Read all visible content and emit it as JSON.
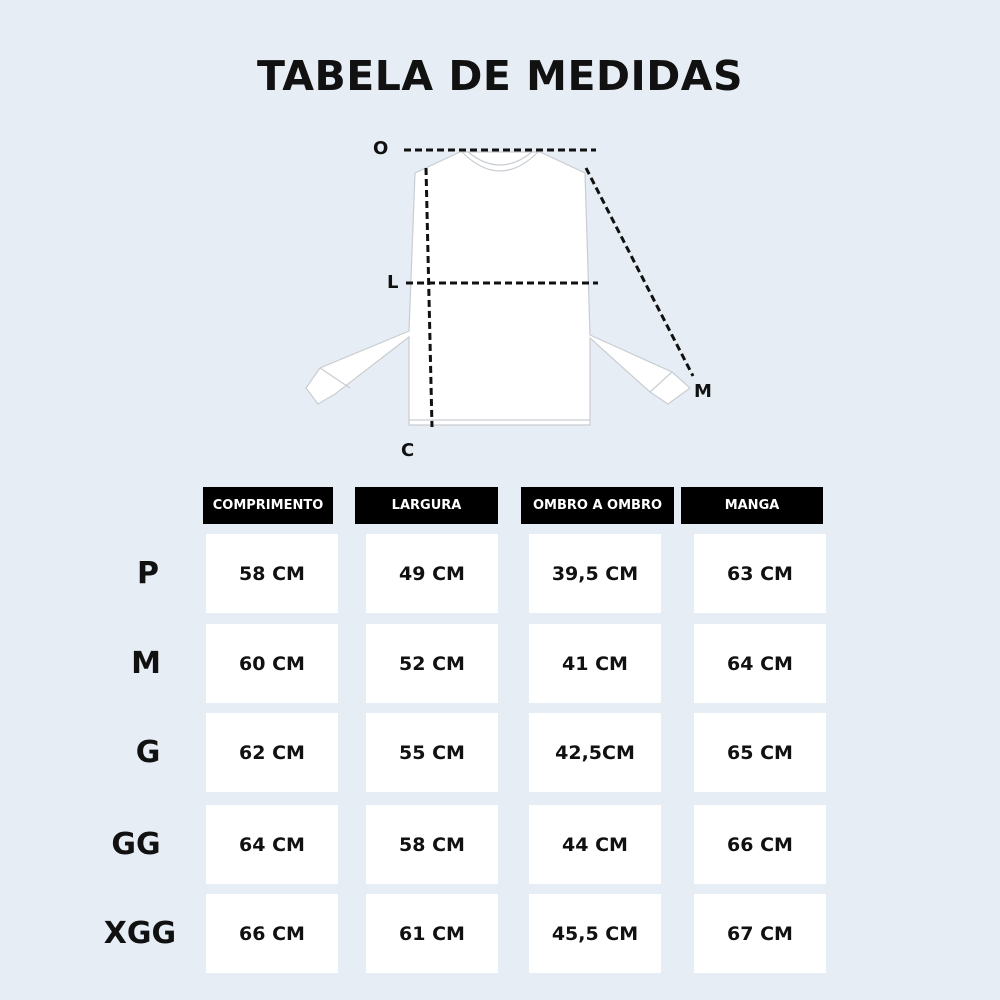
{
  "title": "TABELA DE MEDIDAS",
  "diagram": {
    "labels": {
      "shoulder": "O",
      "width": "L",
      "length": "C",
      "sleeve": "M"
    }
  },
  "table": {
    "headers": [
      "COMPRIMENTO",
      "LARGURA",
      "OMBRO A OMBRO",
      "MANGA"
    ],
    "rows": [
      {
        "size": "P",
        "values": [
          "58 CM",
          "49 CM",
          "39,5 CM",
          "63 CM"
        ]
      },
      {
        "size": "M",
        "values": [
          "60  CM",
          "52 CM",
          "41 CM",
          "64 CM"
        ]
      },
      {
        "size": "G",
        "values": [
          "62 CM",
          "55 CM",
          "42,5CM",
          "65 CM"
        ]
      },
      {
        "size": "GG",
        "values": [
          "64 CM",
          "58 CM",
          "44 CM",
          "66 CM"
        ]
      },
      {
        "size": "XGG",
        "values": [
          "66 CM",
          "61 CM",
          "45,5 CM",
          "67 CM"
        ]
      }
    ]
  }
}
